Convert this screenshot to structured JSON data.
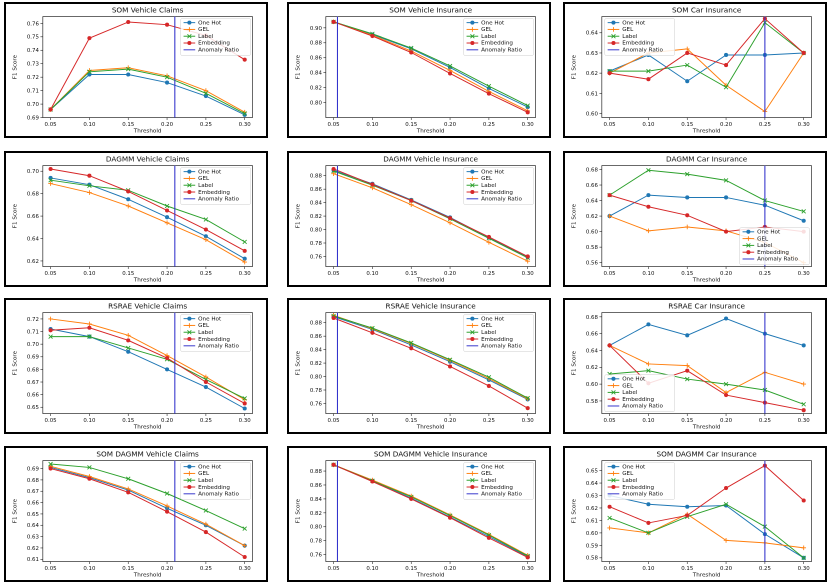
{
  "figure": {
    "xlabel": "Threshold",
    "ylabel": "F1 Score"
  },
  "series_style": {
    "One Hot": {
      "color": "#1f77b4",
      "marker": "circle"
    },
    "GEL": {
      "color": "#ff7f0e",
      "marker": "plus"
    },
    "Label": {
      "color": "#2ca02c",
      "marker": "x"
    },
    "Embedding": {
      "color": "#d62728",
      "marker": "circle"
    },
    "Anomaly Ratio": {
      "color": "#3333cc"
    }
  },
  "chart_data": [
    {
      "type": "line",
      "title": "SOM Vehicle Claims",
      "xlabel": "Threshold",
      "ylabel": "F1 Score",
      "x": [
        0.05,
        0.1,
        0.15,
        0.2,
        0.25,
        0.3
      ],
      "xlim": [
        0.04,
        0.31
      ],
      "ylim": [
        0.69,
        0.765
      ],
      "xticks": [
        "0.05",
        "0.10",
        "0.15",
        "0.20",
        "0.25",
        "0.30"
      ],
      "yticks": [
        "0.69",
        "0.70",
        "0.71",
        "0.72",
        "0.73",
        "0.74",
        "0.75",
        "0.76"
      ],
      "series": [
        {
          "name": "One Hot",
          "values": [
            0.696,
            0.722,
            0.722,
            0.716,
            0.706,
            0.692
          ]
        },
        {
          "name": "GEL",
          "values": [
            0.696,
            0.725,
            0.727,
            0.721,
            0.71,
            0.694
          ]
        },
        {
          "name": "Label",
          "values": [
            0.696,
            0.724,
            0.726,
            0.72,
            0.708,
            0.693
          ]
        },
        {
          "name": "Embedding",
          "values": [
            0.696,
            0.749,
            0.761,
            0.759,
            0.751,
            0.733
          ]
        }
      ],
      "anomaly_ratio_x": 0.21,
      "legend": "upper-right"
    },
    {
      "type": "line",
      "title": "SOM Vehicle Insurance",
      "xlabel": "Threshold",
      "ylabel": "F1 Score",
      "x": [
        0.05,
        0.1,
        0.15,
        0.2,
        0.25,
        0.3
      ],
      "xlim": [
        0.04,
        0.31
      ],
      "ylim": [
        0.78,
        0.915
      ],
      "xticks": [
        "0.05",
        "0.10",
        "0.15",
        "0.20",
        "0.25",
        "0.30"
      ],
      "yticks": [
        "0.80",
        "0.82",
        "0.84",
        "0.86",
        "0.88",
        "0.90"
      ],
      "series": [
        {
          "name": "One Hot",
          "values": [
            0.908,
            0.891,
            0.872,
            0.847,
            0.819,
            0.794
          ]
        },
        {
          "name": "GEL",
          "values": [
            0.908,
            0.89,
            0.869,
            0.843,
            0.815,
            0.789
          ]
        },
        {
          "name": "Label",
          "values": [
            0.908,
            0.892,
            0.873,
            0.849,
            0.822,
            0.796
          ]
        },
        {
          "name": "Embedding",
          "values": [
            0.908,
            0.889,
            0.867,
            0.839,
            0.812,
            0.787
          ]
        }
      ],
      "anomaly_ratio_x": 0.055,
      "legend": "upper-right"
    },
    {
      "type": "line",
      "title": "SOM Car Insurance",
      "xlabel": "Threshold",
      "ylabel": "F1 Score",
      "x": [
        0.05,
        0.1,
        0.15,
        0.2,
        0.25,
        0.3
      ],
      "xlim": [
        0.04,
        0.31
      ],
      "ylim": [
        0.598,
        0.648
      ],
      "xticks": [
        "0.05",
        "0.10",
        "0.15",
        "0.20",
        "0.25",
        "0.30"
      ],
      "yticks": [
        "0.60",
        "0.61",
        "0.62",
        "0.63",
        "0.64"
      ],
      "series": [
        {
          "name": "One Hot",
          "values": [
            0.621,
            0.629,
            0.616,
            0.629,
            0.629,
            0.63
          ]
        },
        {
          "name": "GEL",
          "values": [
            0.62,
            0.63,
            0.632,
            0.614,
            0.601,
            0.63
          ]
        },
        {
          "name": "Label",
          "values": [
            0.621,
            0.621,
            0.624,
            0.613,
            0.645,
            0.63
          ]
        },
        {
          "name": "Embedding",
          "values": [
            0.62,
            0.617,
            0.63,
            0.624,
            0.647,
            0.63
          ]
        }
      ],
      "anomaly_ratio_x": 0.25,
      "legend": "upper-left"
    },
    {
      "type": "line",
      "title": "DAGMM Vehicle Claims",
      "xlabel": "Threshold",
      "ylabel": "F1 Score",
      "x": [
        0.05,
        0.1,
        0.15,
        0.2,
        0.25,
        0.3
      ],
      "xlim": [
        0.04,
        0.31
      ],
      "ylim": [
        0.615,
        0.705
      ],
      "xticks": [
        "0.05",
        "0.10",
        "0.15",
        "0.20",
        "0.25",
        "0.30"
      ],
      "yticks": [
        "0.62",
        "0.64",
        "0.66",
        "0.68",
        "0.70"
      ],
      "series": [
        {
          "name": "One Hot",
          "values": [
            0.694,
            0.688,
            0.675,
            0.659,
            0.642,
            0.622
          ]
        },
        {
          "name": "GEL",
          "values": [
            0.689,
            0.681,
            0.669,
            0.654,
            0.639,
            0.619
          ]
        },
        {
          "name": "Label",
          "values": [
            0.692,
            0.687,
            0.683,
            0.669,
            0.657,
            0.637
          ]
        },
        {
          "name": "Embedding",
          "values": [
            0.702,
            0.696,
            0.682,
            0.665,
            0.648,
            0.629
          ]
        }
      ],
      "anomaly_ratio_x": 0.21,
      "legend": "upper-right"
    },
    {
      "type": "line",
      "title": "DAGMM Vehicle Insurance",
      "xlabel": "Threshold",
      "ylabel": "F1 Score",
      "x": [
        0.05,
        0.1,
        0.15,
        0.2,
        0.25,
        0.3
      ],
      "xlim": [
        0.04,
        0.31
      ],
      "ylim": [
        0.745,
        0.895
      ],
      "xticks": [
        "0.05",
        "0.10",
        "0.15",
        "0.20",
        "0.25",
        "0.30"
      ],
      "yticks": [
        "0.76",
        "0.78",
        "0.80",
        "0.82",
        "0.84",
        "0.86",
        "0.88"
      ],
      "series": [
        {
          "name": "One Hot",
          "values": [
            0.888,
            0.868,
            0.844,
            0.818,
            0.788,
            0.759
          ]
        },
        {
          "name": "GEL",
          "values": [
            0.883,
            0.862,
            0.837,
            0.81,
            0.781,
            0.753
          ]
        },
        {
          "name": "Label",
          "values": [
            0.887,
            0.866,
            0.843,
            0.816,
            0.787,
            0.758
          ]
        },
        {
          "name": "Embedding",
          "values": [
            0.89,
            0.867,
            0.843,
            0.817,
            0.789,
            0.76
          ]
        }
      ],
      "anomaly_ratio_x": 0.055,
      "legend": "upper-right"
    },
    {
      "type": "line",
      "title": "DAGMM Car Insurance",
      "xlabel": "Threshold",
      "ylabel": "F1 Score",
      "x": [
        0.05,
        0.1,
        0.15,
        0.2,
        0.25,
        0.3
      ],
      "xlim": [
        0.04,
        0.31
      ],
      "ylim": [
        0.555,
        0.685
      ],
      "xticks": [
        "0.05",
        "0.10",
        "0.15",
        "0.20",
        "0.25",
        "0.30"
      ],
      "yticks": [
        "0.56",
        "0.58",
        "0.60",
        "0.62",
        "0.64",
        "0.66",
        "0.68"
      ],
      "series": [
        {
          "name": "One Hot",
          "values": [
            0.62,
            0.647,
            0.644,
            0.644,
            0.634,
            0.614
          ]
        },
        {
          "name": "GEL",
          "values": [
            0.62,
            0.601,
            0.606,
            0.601,
            0.586,
            0.56
          ]
        },
        {
          "name": "Label",
          "values": [
            0.647,
            0.679,
            0.674,
            0.666,
            0.64,
            0.626
          ]
        },
        {
          "name": "Embedding",
          "values": [
            0.647,
            0.632,
            0.621,
            0.6,
            0.606,
            0.6
          ]
        }
      ],
      "anomaly_ratio_x": 0.25,
      "legend": "lower-right"
    },
    {
      "type": "line",
      "title": "RSRAE Vehicle Claims",
      "xlabel": "Threshold",
      "ylabel": "F1 Score",
      "x": [
        0.05,
        0.1,
        0.15,
        0.2,
        0.25,
        0.3
      ],
      "xlim": [
        0.04,
        0.31
      ],
      "ylim": [
        0.645,
        0.725
      ],
      "xticks": [
        "0.05",
        "0.10",
        "0.15",
        "0.20",
        "0.25",
        "0.30"
      ],
      "yticks": [
        "0.65",
        "0.66",
        "0.67",
        "0.68",
        "0.69",
        "0.70",
        "0.71",
        "0.72"
      ],
      "series": [
        {
          "name": "One Hot",
          "values": [
            0.712,
            0.706,
            0.694,
            0.68,
            0.666,
            0.649
          ]
        },
        {
          "name": "GEL",
          "values": [
            0.72,
            0.716,
            0.707,
            0.691,
            0.674,
            0.656
          ]
        },
        {
          "name": "Label",
          "values": [
            0.706,
            0.706,
            0.697,
            0.688,
            0.672,
            0.657
          ]
        },
        {
          "name": "Embedding",
          "values": [
            0.711,
            0.713,
            0.703,
            0.689,
            0.67,
            0.653
          ]
        }
      ],
      "anomaly_ratio_x": 0.21,
      "legend": "upper-right"
    },
    {
      "type": "line",
      "title": "RSRAE Vehicle Insurance",
      "xlabel": "Threshold",
      "ylabel": "F1 Score",
      "x": [
        0.05,
        0.1,
        0.15,
        0.2,
        0.25,
        0.3
      ],
      "xlim": [
        0.04,
        0.31
      ],
      "ylim": [
        0.745,
        0.895
      ],
      "xticks": [
        "0.05",
        "0.10",
        "0.15",
        "0.20",
        "0.25",
        "0.30"
      ],
      "yticks": [
        "0.76",
        "0.78",
        "0.80",
        "0.82",
        "0.84",
        "0.86",
        "0.88"
      ],
      "series": [
        {
          "name": "One Hot",
          "values": [
            0.889,
            0.87,
            0.847,
            0.822,
            0.795,
            0.766
          ]
        },
        {
          "name": "GEL",
          "values": [
            0.891,
            0.871,
            0.849,
            0.824,
            0.797,
            0.767
          ]
        },
        {
          "name": "Label",
          "values": [
            0.89,
            0.872,
            0.85,
            0.825,
            0.799,
            0.768
          ]
        },
        {
          "name": "Embedding",
          "values": [
            0.887,
            0.865,
            0.842,
            0.815,
            0.786,
            0.753
          ]
        }
      ],
      "anomaly_ratio_x": 0.055,
      "legend": "upper-right"
    },
    {
      "type": "line",
      "title": "RSRAE Car Insurance",
      "xlabel": "Threshold",
      "ylabel": "F1 Score",
      "x": [
        0.05,
        0.1,
        0.15,
        0.2,
        0.25,
        0.3
      ],
      "xlim": [
        0.04,
        0.31
      ],
      "ylim": [
        0.565,
        0.685
      ],
      "xticks": [
        "0.05",
        "0.10",
        "0.15",
        "0.20",
        "0.25",
        "0.30"
      ],
      "yticks": [
        "0.58",
        "0.60",
        "0.62",
        "0.64",
        "0.66",
        "0.68"
      ],
      "series": [
        {
          "name": "One Hot",
          "values": [
            0.646,
            0.671,
            0.658,
            0.678,
            0.66,
            0.646
          ]
        },
        {
          "name": "GEL",
          "values": [
            0.646,
            0.624,
            0.622,
            0.59,
            0.614,
            0.6
          ]
        },
        {
          "name": "Label",
          "values": [
            0.612,
            0.616,
            0.606,
            0.6,
            0.593,
            0.576
          ]
        },
        {
          "name": "Embedding",
          "values": [
            0.646,
            0.601,
            0.616,
            0.587,
            0.578,
            0.569
          ]
        }
      ],
      "anomaly_ratio_x": 0.25,
      "legend": "lower-left"
    },
    {
      "type": "line",
      "title": "SOM DAGMM Vehicle Claims",
      "xlabel": "Threshold",
      "ylabel": "F1 Score",
      "x": [
        0.05,
        0.1,
        0.15,
        0.2,
        0.25,
        0.3
      ],
      "xlim": [
        0.04,
        0.31
      ],
      "ylim": [
        0.608,
        0.697
      ],
      "xticks": [
        "0.05",
        "0.10",
        "0.15",
        "0.20",
        "0.25",
        "0.30"
      ],
      "yticks": [
        "0.61",
        "0.62",
        "0.63",
        "0.64",
        "0.65",
        "0.66",
        "0.67",
        "0.68",
        "0.69"
      ],
      "series": [
        {
          "name": "One Hot",
          "values": [
            0.691,
            0.682,
            0.671,
            0.655,
            0.64,
            0.622
          ]
        },
        {
          "name": "GEL",
          "values": [
            0.692,
            0.683,
            0.672,
            0.657,
            0.641,
            0.622
          ]
        },
        {
          "name": "Label",
          "values": [
            0.694,
            0.691,
            0.681,
            0.668,
            0.653,
            0.637
          ]
        },
        {
          "name": "Embedding",
          "values": [
            0.69,
            0.681,
            0.669,
            0.652,
            0.634,
            0.612
          ]
        }
      ],
      "anomaly_ratio_x": 0.21,
      "legend": "upper-right"
    },
    {
      "type": "line",
      "title": "SOM DAGMM Vehicle Insurance",
      "xlabel": "Threshold",
      "ylabel": "F1 Score",
      "x": [
        0.05,
        0.1,
        0.15,
        0.2,
        0.25,
        0.3
      ],
      "xlim": [
        0.04,
        0.31
      ],
      "ylim": [
        0.75,
        0.895
      ],
      "xticks": [
        "0.05",
        "0.10",
        "0.15",
        "0.20",
        "0.25",
        "0.30"
      ],
      "yticks": [
        "0.76",
        "0.78",
        "0.80",
        "0.82",
        "0.84",
        "0.86",
        "0.88"
      ],
      "series": [
        {
          "name": "One Hot",
          "values": [
            0.889,
            0.866,
            0.841,
            0.814,
            0.786,
            0.757
          ]
        },
        {
          "name": "GEL",
          "values": [
            0.889,
            0.867,
            0.844,
            0.817,
            0.789,
            0.759
          ]
        },
        {
          "name": "Label",
          "values": [
            0.889,
            0.866,
            0.843,
            0.816,
            0.788,
            0.758
          ]
        },
        {
          "name": "Embedding",
          "values": [
            0.889,
            0.865,
            0.84,
            0.813,
            0.784,
            0.756
          ]
        }
      ],
      "anomaly_ratio_x": 0.055,
      "legend": "upper-right"
    },
    {
      "type": "line",
      "title": "SOM DAGMM Car Insurance",
      "xlabel": "Threshold",
      "ylabel": "F1 Score",
      "x": [
        0.05,
        0.1,
        0.15,
        0.2,
        0.25,
        0.3
      ],
      "xlim": [
        0.04,
        0.31
      ],
      "ylim": [
        0.577,
        0.658
      ],
      "xticks": [
        "0.05",
        "0.10",
        "0.15",
        "0.20",
        "0.25",
        "0.30"
      ],
      "yticks": [
        "0.58",
        "0.59",
        "0.60",
        "0.61",
        "0.62",
        "0.63",
        "0.64",
        "0.65"
      ],
      "series": [
        {
          "name": "One Hot",
          "values": [
            0.63,
            0.623,
            0.621,
            0.622,
            0.599,
            0.58
          ]
        },
        {
          "name": "GEL",
          "values": [
            0.604,
            0.6,
            0.615,
            0.594,
            0.592,
            0.588
          ]
        },
        {
          "name": "Label",
          "values": [
            0.612,
            0.6,
            0.613,
            0.623,
            0.605,
            0.58
          ]
        },
        {
          "name": "Embedding",
          "values": [
            0.621,
            0.608,
            0.614,
            0.636,
            0.654,
            0.626
          ]
        }
      ],
      "anomaly_ratio_x": 0.25,
      "legend": "upper-left"
    }
  ]
}
